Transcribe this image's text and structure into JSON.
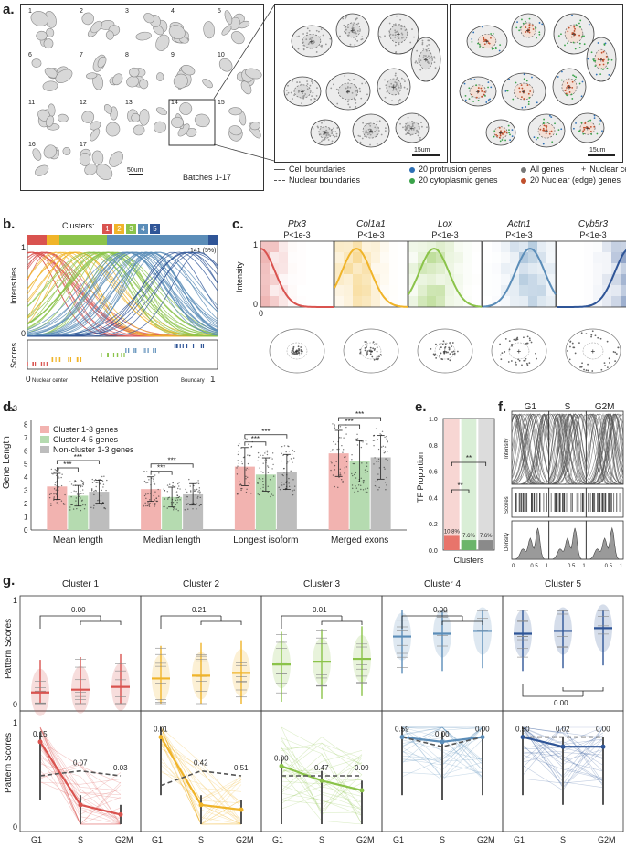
{
  "panels": {
    "a": "a.",
    "b": "b.",
    "c": "c.",
    "d": "d.",
    "e": "e.",
    "f": "f.",
    "g": "g."
  },
  "panel_a": {
    "batch_numbers": [
      "1",
      "2",
      "3",
      "4",
      "5",
      "6",
      "7",
      "8",
      "9",
      "10",
      "11",
      "12",
      "13",
      "14",
      "15",
      "16",
      "17"
    ],
    "scale_left": "50um",
    "batches_label": "Batches 1-17",
    "scale_mid": "15um",
    "scale_right": "15um",
    "legend": [
      {
        "text": "Cell boundaries",
        "style": "line",
        "color": "#555555"
      },
      {
        "text": "Nuclear boundaries",
        "style": "dash",
        "color": "#555555"
      },
      {
        "text": "20 protrusion genes",
        "style": "dot",
        "color": "#2c6fb5"
      },
      {
        "text": "20 cytoplasmic genes",
        "style": "dot",
        "color": "#3aa34a"
      },
      {
        "text": "All genes",
        "style": "dot",
        "color": "#777777"
      },
      {
        "text": "20 Nuclear (edge) genes",
        "style": "dot",
        "color": "#c0502d"
      },
      {
        "text": "Nuclear center",
        "style": "plus",
        "color": "#333333"
      }
    ]
  },
  "panel_b": {
    "clusters_label": "Clusters:",
    "cluster_ids": [
      "1",
      "2",
      "3",
      "4",
      "5"
    ],
    "cluster_colors": [
      "#d9534f",
      "#f0b429",
      "#8bc34a",
      "#5b8db8",
      "#2f5597"
    ],
    "bar_labels": [
      "270 (10%)",
      "188 (7%)",
      "690 (25%)",
      "1436 (53%)",
      "141 (5%)"
    ],
    "bar_fractions": [
      0.1,
      0.07,
      0.25,
      0.53,
      0.05
    ],
    "ylabel_top": "Intensities",
    "ylabel_bottom": "Scores",
    "y_ticks": [
      "1",
      "0"
    ],
    "x_left": "0",
    "x_left_note": "Nuclear center",
    "xlabel": "Relative position",
    "x_right_note": "Boundary",
    "x_right": "1"
  },
  "panel_c": {
    "ylabel": "Intensity",
    "y_ticks": [
      "1",
      "0"
    ],
    "x_ticks": [
      "0",
      "1"
    ],
    "genes": [
      {
        "name": "Ptx3",
        "p": "P<1e-3",
        "color": "#d9534f",
        "peak": 0.0
      },
      {
        "name": "Col1a1",
        "p": "P<1e-3",
        "color": "#f0b429",
        "peak": 0.3
      },
      {
        "name": "Lox",
        "p": "P<1e-3",
        "color": "#8bc34a",
        "peak": 0.35
      },
      {
        "name": "Actn1",
        "p": "P<1e-3",
        "color": "#5b8db8",
        "peak": 0.65
      },
      {
        "name": "Cyb5r3",
        "p": "P<1e-3",
        "color": "#2f5597",
        "peak": 1.0
      }
    ]
  },
  "panel_d": {
    "unit": "1e3",
    "ylabel": "Gene Length",
    "y_ticks": [
      "0",
      "1",
      "2",
      "3",
      "4",
      "5",
      "6",
      "7",
      "8"
    ],
    "legend": [
      {
        "text": "Cluster 1-3 genes",
        "color": "#f2b3b0"
      },
      {
        "text": "Cluster 4-5 genes",
        "color": "#b5dbb0"
      },
      {
        "text": "Non-cluster 1-3 genes",
        "color": "#bdbdbd"
      }
    ],
    "categories": [
      "Mean length",
      "Median length",
      "Longest isoform",
      "Merged exons"
    ],
    "series": [
      {
        "name": "Cluster 1-3 genes",
        "values": [
          3.3,
          3.1,
          4.8,
          5.8
        ]
      },
      {
        "name": "Cluster 4-5 genes",
        "values": [
          2.6,
          2.5,
          4.2,
          5.2
        ]
      },
      {
        "name": "Non-cluster 1-3 genes",
        "values": [
          2.9,
          2.7,
          4.4,
          5.5
        ]
      }
    ],
    "sig": "***"
  },
  "panel_e": {
    "ylabel": "TF Proportion",
    "xlabel": "Clusters",
    "y_ticks": [
      "0.0",
      "0.2",
      "0.4",
      "0.6",
      "0.8",
      "1.0"
    ],
    "bars": [
      {
        "label": "10.8%",
        "value": 0.108,
        "color": "#e8746b",
        "bg": "#f7d6d3"
      },
      {
        "label": "7.6%",
        "value": 0.076,
        "color": "#6bb56a",
        "bg": "#d9eed6"
      },
      {
        "label": "7.6%",
        "value": 0.076,
        "color": "#8a8a8a",
        "bg": "#dcdcdc"
      }
    ],
    "sig": [
      "**",
      "**"
    ]
  },
  "panel_f": {
    "phases": [
      "G1",
      "S",
      "G2M"
    ],
    "row_labels": [
      "Intensity",
      "Scores",
      "Density"
    ],
    "x_ticks": [
      "0",
      "0.5",
      "1"
    ]
  },
  "panel_g": {
    "clusters": [
      {
        "title": "Cluster 1",
        "color": "#d9534f",
        "top_p": "0.00",
        "bottom_p": [
          "0.15",
          "0.07",
          "0.03"
        ]
      },
      {
        "title": "Cluster 2",
        "color": "#f0b429",
        "top_p": "0.21",
        "bottom_p": [
          "0.01",
          "0.42",
          "0.51"
        ]
      },
      {
        "title": "Cluster 3",
        "color": "#8bc34a",
        "top_p": "0.01",
        "bottom_p": [
          "0.00",
          "0.47",
          "0.09"
        ]
      },
      {
        "title": "Cluster 4",
        "color": "#5b8db8",
        "top_p": "0.00",
        "bottom_p": [
          "0.59",
          "0.00",
          "0.00"
        ]
      },
      {
        "title": "Cluster 5",
        "color": "#2f5597",
        "top_p": "0.00",
        "bottom_p": [
          "0.50",
          "0.02",
          "0.00"
        ]
      }
    ],
    "ylabel": "Pattern Scores",
    "y_ticks": [
      "0",
      "1"
    ],
    "x_ticks": [
      "G1",
      "S",
      "G2M"
    ]
  }
}
